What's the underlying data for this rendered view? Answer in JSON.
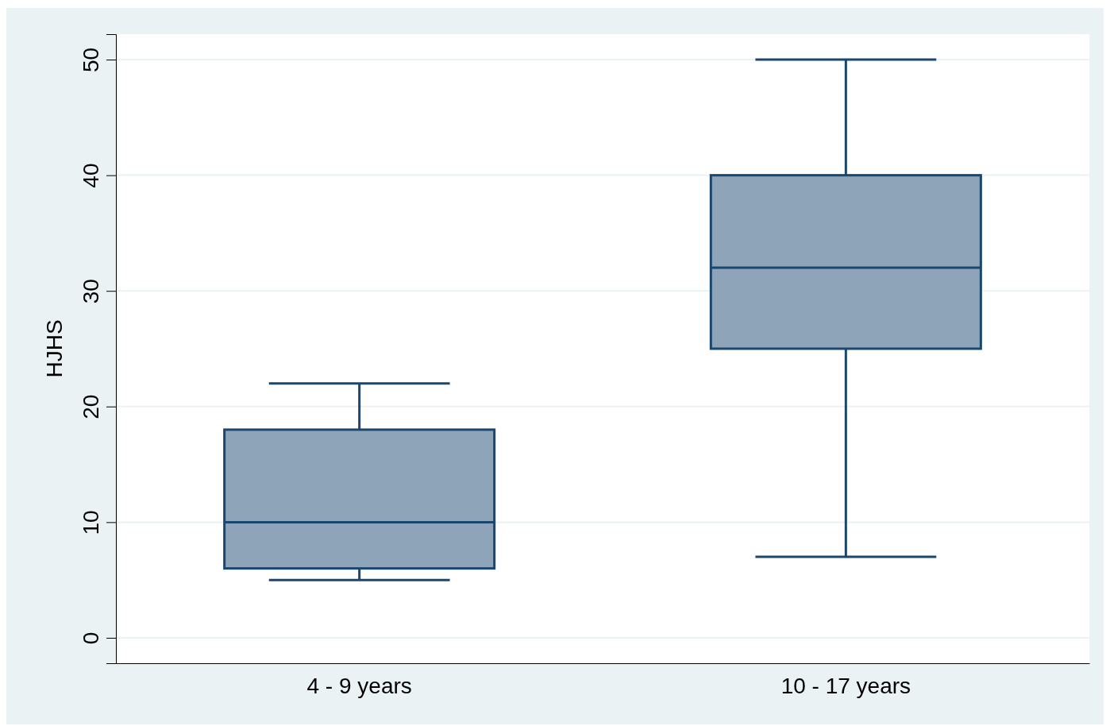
{
  "chart_data": {
    "type": "box",
    "ylabel": "HJHS",
    "categories": [
      "4 - 9 years",
      "10 - 17 years"
    ],
    "boxes": [
      {
        "low": 5,
        "q1": 6,
        "median": 10,
        "q3": 18,
        "high": 22
      },
      {
        "low": 7,
        "q1": 25,
        "median": 32,
        "q3": 40,
        "high": 50
      }
    ],
    "color": "#8ea4b8",
    "ylim": [
      -2.2,
      52.2
    ],
    "yticks": [
      0,
      10,
      20,
      30,
      40,
      50
    ],
    "grid": true
  }
}
